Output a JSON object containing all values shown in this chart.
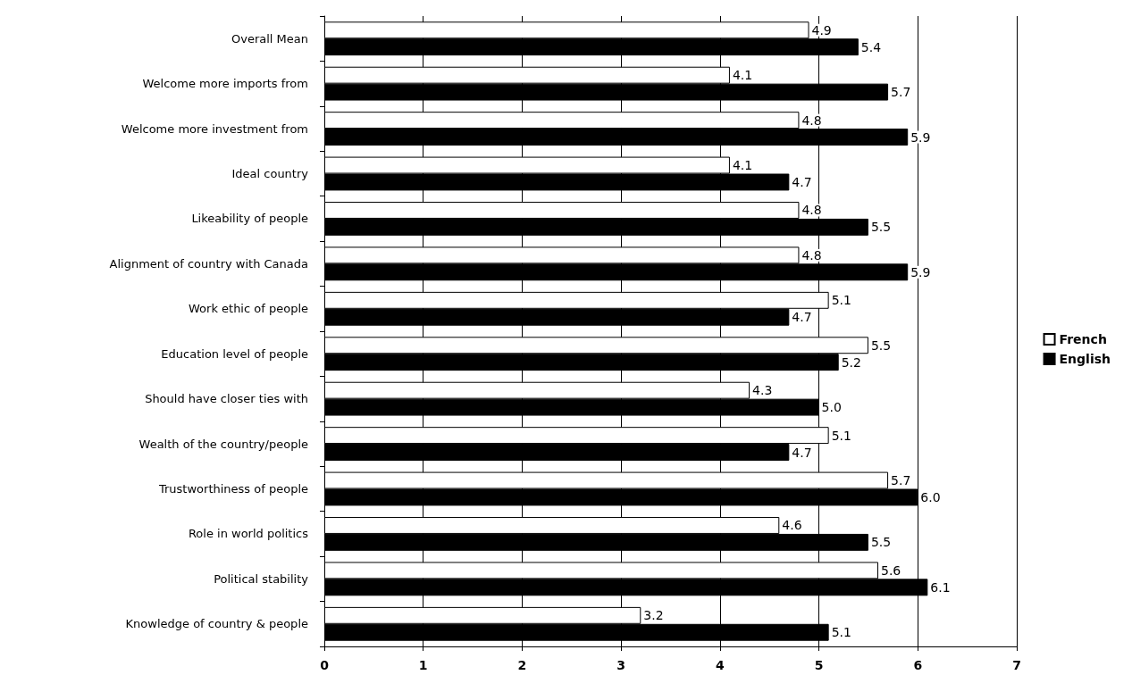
{
  "chart_data": {
    "type": "bar",
    "orientation": "horizontal",
    "categories": [
      "Overall Mean",
      "Welcome more imports from",
      "Welcome more investment from",
      "Ideal country",
      "Likeability of people",
      "Alignment of country with Canada",
      "Work ethic of people",
      "Education level of people",
      "Should have closer ties with",
      "Wealth of the country/people",
      "Trustworthiness of people",
      "Role in world politics",
      "Political stability",
      "Knowledge of country & people"
    ],
    "series": [
      {
        "name": "French",
        "color": "#ffffff",
        "values": [
          4.9,
          4.1,
          4.8,
          4.1,
          4.8,
          4.8,
          5.1,
          5.5,
          4.3,
          5.1,
          5.7,
          4.6,
          5.6,
          3.2
        ],
        "value_labels": [
          "4.9",
          "4.1",
          "4.8",
          "4.1",
          "4.8",
          "4.8",
          "5.1",
          "5.5",
          "4.3",
          "5.1",
          "5.7",
          "4.6",
          "5.6",
          "3.2"
        ]
      },
      {
        "name": "English",
        "color": "#000000",
        "values": [
          5.4,
          5.7,
          5.9,
          4.7,
          5.5,
          5.9,
          4.7,
          5.2,
          5.0,
          4.7,
          6.0,
          5.5,
          6.1,
          5.1
        ],
        "value_labels": [
          "5.4",
          "5.7",
          "5.9",
          "4.7",
          "5.5",
          "5.9",
          "4.7",
          "5.2",
          "5.0",
          "4.7",
          "6.0",
          "5.5",
          "6.1",
          "5.1"
        ]
      }
    ],
    "xlim": [
      0,
      7
    ],
    "xticks": [
      0,
      1,
      2,
      3,
      4,
      5,
      6,
      7
    ],
    "grid": "x",
    "legend": "right"
  }
}
